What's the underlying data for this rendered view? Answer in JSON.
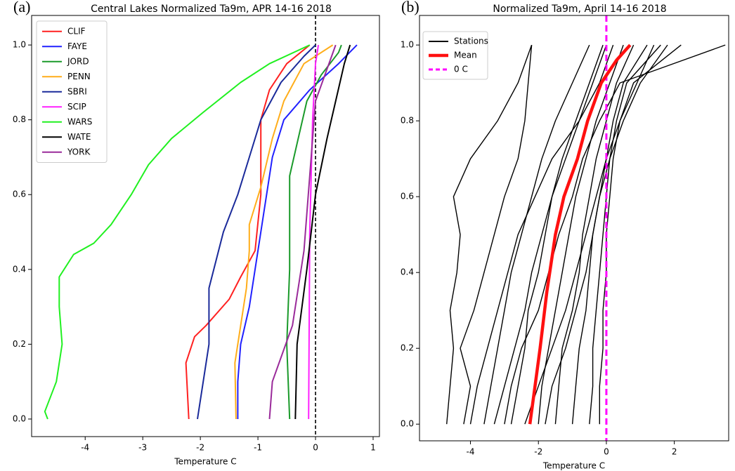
{
  "chart_data": [
    {
      "type": "line",
      "panel_label": "(a)",
      "title": "Central Lakes Normalized Ta9m, APR 14-16 2018",
      "x_label": "Temperature C",
      "xlim": [
        -4.93,
        1.11
      ],
      "ylim": [
        -0.047,
        1.079
      ],
      "xticks": [
        -4,
        -3,
        -2,
        -1,
        0,
        1
      ],
      "yticks": [
        {
          "value": 0,
          "label": "0.0"
        },
        0.2,
        0.4,
        0.6,
        0.8,
        {
          "value": 1,
          "label": "1.0"
        }
      ],
      "legend": "upper left",
      "vline": {
        "x": 0,
        "color": "#000000"
      },
      "series": [
        {
          "name": "CLIF",
          "color": "#ff2020",
          "x": [
            -2.2,
            -2.25,
            -2.1,
            -1.9,
            -1.5,
            -1.3,
            -1.05,
            -0.95,
            -0.95,
            -0.8,
            -0.5,
            -0.1
          ],
          "y": [
            0,
            0.15,
            0.22,
            0.25,
            0.32,
            0.38,
            0.45,
            0.6,
            0.8,
            0.88,
            0.95,
            1.0
          ]
        },
        {
          "name": "FAYE",
          "color": "#2020ff",
          "x": [
            -1.35,
            -1.35,
            -1.3,
            -1.15,
            -1.0,
            -0.9,
            -0.75,
            -0.55,
            -0.1,
            0.4,
            0.72
          ],
          "y": [
            0,
            0.1,
            0.2,
            0.3,
            0.45,
            0.55,
            0.7,
            0.8,
            0.88,
            0.95,
            1.0
          ]
        },
        {
          "name": "JORD",
          "color": "#1a9a2a",
          "x": [
            -0.45,
            -0.5,
            -0.45,
            -0.45,
            -0.3,
            -0.15,
            0.1,
            0.4,
            0.45
          ],
          "y": [
            0,
            0.2,
            0.4,
            0.65,
            0.75,
            0.85,
            0.92,
            0.98,
            1.0
          ]
        },
        {
          "name": "PENN",
          "color": "#ffad1a",
          "x": [
            -1.38,
            -1.4,
            -1.2,
            -1.15,
            -1.15,
            -0.95,
            -0.75,
            -0.55,
            -0.2,
            0.3
          ],
          "y": [
            0,
            0.15,
            0.35,
            0.45,
            0.52,
            0.62,
            0.75,
            0.85,
            0.95,
            1.0
          ]
        },
        {
          "name": "SBRI",
          "color": "#1a2a9a",
          "x": [
            -2.05,
            -1.95,
            -1.85,
            -1.85,
            -1.6,
            -1.35,
            -1.15,
            -0.95,
            -0.6,
            -0.2,
            0
          ],
          "y": [
            0,
            0.1,
            0.2,
            0.35,
            0.5,
            0.6,
            0.7,
            0.8,
            0.9,
            0.97,
            1.0
          ]
        },
        {
          "name": "SCIP",
          "color": "#ff20ff",
          "x": [
            -0.12,
            -0.1,
            -0.05,
            0,
            0.05
          ],
          "y": [
            0,
            0.5,
            0.8,
            0.95,
            1.0
          ]
        },
        {
          "name": "WARS",
          "color": "#20f020",
          "x": [
            -4.65,
            -4.7,
            -4.5,
            -4.4,
            -4.45,
            -4.45,
            -4.2,
            -3.85,
            -3.55,
            -3.2,
            -2.9,
            -2.5,
            -1.95,
            -1.3,
            -0.8,
            -0.1
          ],
          "y": [
            0,
            0.02,
            0.1,
            0.2,
            0.3,
            0.38,
            0.44,
            0.47,
            0.52,
            0.6,
            0.68,
            0.75,
            0.82,
            0.9,
            0.95,
            1.0
          ]
        },
        {
          "name": "WATE",
          "color": "#000000",
          "x": [
            -0.35,
            -0.32,
            -0.15,
            0.0,
            0.2,
            0.35,
            0.5,
            0.6
          ],
          "y": [
            0,
            0.2,
            0.4,
            0.6,
            0.75,
            0.85,
            0.95,
            1.0
          ]
        },
        {
          "name": "YORK",
          "color": "#9a2a9a",
          "x": [
            -0.8,
            -0.75,
            -0.4,
            -0.2,
            -0.1,
            0.0,
            0.35
          ],
          "y": [
            0,
            0.1,
            0.25,
            0.45,
            0.65,
            0.85,
            1.0
          ]
        }
      ]
    },
    {
      "type": "line",
      "panel_label": "(b)",
      "title": "Normalized Ta9m, April 14-16 2018",
      "x_label": "Temperature C",
      "xlim": [
        -5.5,
        3.6
      ],
      "ylim": [
        -0.044,
        1.078
      ],
      "xticks": [
        -4,
        -2,
        0,
        2
      ],
      "yticks": [
        {
          "value": 0,
          "label": "0.0"
        },
        0.2,
        0.4,
        0.6,
        0.8,
        {
          "value": 1,
          "label": "1.0"
        }
      ],
      "legend": "upper left",
      "stations": {
        "name": "Stations",
        "color": "#000000",
        "y": [
          0,
          0.1,
          0.2,
          0.3,
          0.4,
          0.5,
          0.6,
          0.7,
          0.8,
          0.9,
          1.0
        ],
        "lines": [
          [
            -4.7,
            -4.6,
            -4.5,
            -4.6,
            -4.4,
            -4.3,
            -4.5,
            -4.0,
            -3.2,
            -2.6,
            -2.2
          ],
          [
            -4.2,
            -4.0,
            -4.3,
            -3.9,
            -3.6,
            -3.3,
            -3.0,
            -2.6,
            -2.4,
            -2.3,
            -2.2
          ],
          [
            -3.6,
            -3.4,
            -3.2,
            -3.0,
            -2.8,
            -2.5,
            -2.2,
            -1.9,
            -1.5,
            -1.0,
            -0.5
          ],
          [
            -2.8,
            -2.6,
            -2.4,
            -2.3,
            -2.0,
            -1.8,
            -1.6,
            -1.2,
            -0.8,
            -0.4,
            0.0
          ],
          [
            -2.0,
            -1.9,
            -1.7,
            -1.5,
            -1.3,
            -1.1,
            -0.9,
            -0.6,
            -0.3,
            0.1,
            0.5
          ],
          [
            -1.5,
            -1.4,
            -1.3,
            -1.0,
            -0.8,
            -0.7,
            -0.5,
            -0.3,
            0.0,
            0.3,
            0.8
          ],
          [
            -1.0,
            -0.9,
            -0.8,
            -0.6,
            -0.5,
            -0.4,
            -0.2,
            0.0,
            0.2,
            0.5,
            1.2
          ],
          [
            -0.5,
            -0.4,
            -0.4,
            -0.3,
            -0.2,
            -0.1,
            0.0,
            0.1,
            0.3,
            0.6,
            1.6
          ],
          [
            -0.2,
            -0.2,
            -0.1,
            -0.1,
            0.0,
            0.0,
            0.1,
            0.2,
            0.4,
            0.8,
            2.2
          ],
          [
            -3.0,
            -2.8,
            -2.5,
            -2.0,
            -1.7,
            -1.4,
            -1.0,
            -0.7,
            -0.2,
            0.4,
            3.5
          ],
          [
            -4.0,
            -3.8,
            -3.5,
            -3.2,
            -2.9,
            -2.6,
            -2.1,
            -1.6,
            -0.8,
            -0.2,
            0.2
          ],
          [
            -2.4,
            -2.0,
            -1.6,
            -1.2,
            -0.9,
            -0.6,
            -0.3,
            0.0,
            0.4,
            0.9,
            1.4
          ],
          [
            -1.8,
            -1.6,
            -1.2,
            -0.9,
            -0.6,
            -0.4,
            -0.2,
            0.1,
            0.5,
            1.0,
            1.8
          ],
          [
            -3.3,
            -3.0,
            -2.7,
            -2.4,
            -2.2,
            -1.9,
            -1.6,
            -1.3,
            -0.9,
            -0.5,
            -0.1
          ]
        ]
      },
      "series": [
        {
          "name": "Mean",
          "color": "#ff1010",
          "x": [
            -2.25,
            -2.1,
            -1.95,
            -1.75,
            -1.5,
            -1.25,
            -0.85,
            -0.55,
            -0.15,
            0.3,
            0.7
          ],
          "y": [
            0,
            0.1,
            0.2,
            0.35,
            0.5,
            0.6,
            0.7,
            0.8,
            0.9,
            0.96,
            1.0
          ]
        }
      ],
      "vline": {
        "name": "0 C",
        "x": 0,
        "color": "#ff00ff"
      }
    }
  ]
}
